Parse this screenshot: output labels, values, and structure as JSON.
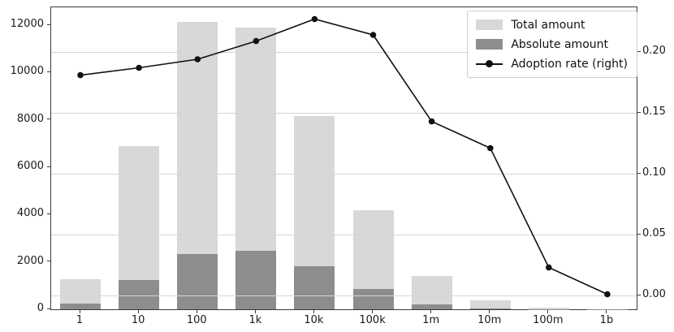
{
  "colors": {
    "background": "#ffffff",
    "total_bar": "#d8d8d8",
    "absolute_bar": "#8d8d8d",
    "line": "#111111",
    "grid": "#d6d6d6",
    "spine": "#3a3a3a",
    "text": "#1a1a1a"
  },
  "chart_data": {
    "type": "bar",
    "subtype": "grouped-overlay bars with secondary-axis line",
    "title": "",
    "xlabel": "",
    "ylabel": "",
    "categories": [
      "1",
      "10",
      "100",
      "1k",
      "10k",
      "100k",
      "1m",
      "10m",
      "100m",
      "1b"
    ],
    "series": [
      {
        "name": "Total amount",
        "type": "bar",
        "axis": "left",
        "color": "#d8d8d8",
        "values": [
          1270,
          6900,
          12150,
          11900,
          8150,
          4200,
          1400,
          370,
          70,
          15
        ]
      },
      {
        "name": "Absolute amount",
        "type": "bar",
        "axis": "left",
        "color": "#8d8d8d",
        "values": [
          230,
          1240,
          2330,
          2470,
          1820,
          870,
          210,
          45,
          12,
          4
        ]
      },
      {
        "name": "Adoption rate (right)",
        "type": "line",
        "axis": "right",
        "color": "#111111",
        "marker": "circle",
        "values": [
          0.181,
          0.187,
          0.194,
          0.209,
          0.227,
          0.214,
          0.143,
          0.121,
          0.023,
          0.001
        ]
      }
    ],
    "left_axis": {
      "ticks": [
        0,
        2000,
        4000,
        6000,
        8000,
        10000,
        12000
      ],
      "tick_labels": [
        "0",
        "2000",
        "4000",
        "6000",
        "8000",
        "10000",
        "12000"
      ],
      "range": [
        0,
        12760
      ]
    },
    "right_axis": {
      "ticks": [
        0,
        0.05,
        0.1,
        0.15,
        0.2
      ],
      "tick_labels": [
        "0.00",
        "0.05",
        "0.10",
        "0.15",
        "0.20"
      ],
      "range": [
        -0.0113,
        0.2367
      ]
    },
    "grid": {
      "horizontal": true,
      "source_axis": "right",
      "on_top_of_bars": true
    },
    "legend": {
      "position": "upper-right",
      "border": "#cccccc"
    }
  }
}
